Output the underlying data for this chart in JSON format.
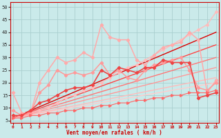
{
  "title": "",
  "xlabel": "Vent moyen/en rafales ( km/h )",
  "ylabel": "",
  "bg_color": "#caeaea",
  "grid_color": "#b0d8d8",
  "x_ticks": [
    0,
    1,
    2,
    3,
    4,
    5,
    6,
    7,
    8,
    9,
    10,
    11,
    12,
    13,
    14,
    15,
    16,
    17,
    18,
    19,
    20,
    21,
    22,
    23
  ],
  "y_ticks": [
    5,
    10,
    15,
    20,
    25,
    30,
    35,
    40,
    45,
    50
  ],
  "ylim": [
    4,
    52
  ],
  "xlim": [
    -0.3,
    23.3
  ],
  "series": [
    {
      "x": [
        0,
        1,
        2,
        3,
        4,
        5,
        6,
        7,
        8,
        9,
        10,
        11,
        12,
        13,
        14,
        15,
        16,
        17,
        18,
        19,
        20,
        21,
        22,
        23
      ],
      "y": [
        6,
        7,
        8,
        9,
        10,
        12,
        14,
        15,
        17,
        18,
        20,
        22,
        24,
        26,
        27,
        29,
        31,
        33,
        35,
        37,
        39,
        41,
        43,
        48
      ],
      "color": "#ffbbbb",
      "lw": 1.0,
      "marker": "D",
      "ms": 2.0,
      "alpha": 1.0
    },
    {
      "x": [
        0,
        1,
        2,
        3,
        4,
        5,
        6,
        7,
        8,
        9,
        10,
        11,
        12,
        13,
        14,
        15,
        16,
        17,
        18,
        19,
        20,
        21,
        22,
        23
      ],
      "y": [
        16,
        8,
        8,
        20,
        25,
        30,
        28,
        29,
        32,
        30,
        43,
        38,
        37,
        37,
        29,
        27,
        31,
        34,
        35,
        36,
        40,
        37,
        16,
        21
      ],
      "color": "#ffaaaa",
      "lw": 1.1,
      "marker": "D",
      "ms": 2.2,
      "alpha": 1.0
    },
    {
      "x": [
        0,
        1,
        2,
        3,
        4,
        5,
        6,
        7,
        8,
        9,
        10,
        11,
        12,
        13,
        14,
        15,
        16,
        17,
        18,
        19,
        20,
        21,
        22,
        23
      ],
      "y": [
        9,
        7,
        8,
        16,
        19,
        25,
        23,
        24,
        23,
        24,
        28,
        23,
        25,
        22,
        21,
        25,
        27,
        28,
        29,
        30,
        25,
        18,
        17,
        20
      ],
      "color": "#ff9999",
      "lw": 1.1,
      "marker": "D",
      "ms": 2.2,
      "alpha": 1.0
    },
    {
      "x": [
        0,
        1,
        2,
        3,
        4,
        5,
        6,
        7,
        8,
        9,
        10,
        11,
        12,
        13,
        14,
        15,
        16,
        17,
        18,
        19,
        20,
        21,
        22,
        23
      ],
      "y": [
        7,
        7,
        9,
        12,
        13,
        15,
        17,
        18,
        18,
        19,
        25,
        23,
        26,
        25,
        24,
        26,
        26,
        29,
        28,
        28,
        28,
        14,
        15,
        16
      ],
      "color": "#ee4444",
      "lw": 1.2,
      "marker": "D",
      "ms": 2.2,
      "alpha": 1.0
    },
    {
      "x": [
        0,
        23
      ],
      "y": [
        6,
        20
      ],
      "color": "#ffcccc",
      "lw": 1.0,
      "marker": null,
      "ms": 0,
      "alpha": 1.0
    },
    {
      "x": [
        0,
        23
      ],
      "y": [
        6,
        22
      ],
      "color": "#ffbbbb",
      "lw": 1.0,
      "marker": null,
      "ms": 0,
      "alpha": 1.0
    },
    {
      "x": [
        0,
        23
      ],
      "y": [
        6,
        26
      ],
      "color": "#ff9999",
      "lw": 1.0,
      "marker": null,
      "ms": 0,
      "alpha": 1.0
    },
    {
      "x": [
        0,
        23
      ],
      "y": [
        6,
        30
      ],
      "color": "#ff7777",
      "lw": 1.0,
      "marker": null,
      "ms": 0,
      "alpha": 1.0
    },
    {
      "x": [
        0,
        23
      ],
      "y": [
        6,
        35
      ],
      "color": "#ff4444",
      "lw": 1.0,
      "marker": null,
      "ms": 0,
      "alpha": 1.0
    },
    {
      "x": [
        0,
        23
      ],
      "y": [
        6,
        40
      ],
      "color": "#dd0000",
      "lw": 1.0,
      "marker": null,
      "ms": 0,
      "alpha": 1.0
    },
    {
      "x": [
        0,
        1,
        2,
        3,
        4,
        5,
        6,
        7,
        8,
        9,
        10,
        11,
        12,
        13,
        14,
        15,
        16,
        17,
        18,
        19,
        20,
        21,
        22,
        23
      ],
      "y": [
        6,
        6,
        7,
        7,
        8,
        8,
        9,
        9,
        10,
        10,
        11,
        11,
        12,
        12,
        13,
        13,
        14,
        14,
        15,
        15,
        16,
        16,
        16,
        17
      ],
      "color": "#ff6666",
      "lw": 0.8,
      "marker": ">",
      "ms": 2.5,
      "alpha": 1.0
    }
  ]
}
